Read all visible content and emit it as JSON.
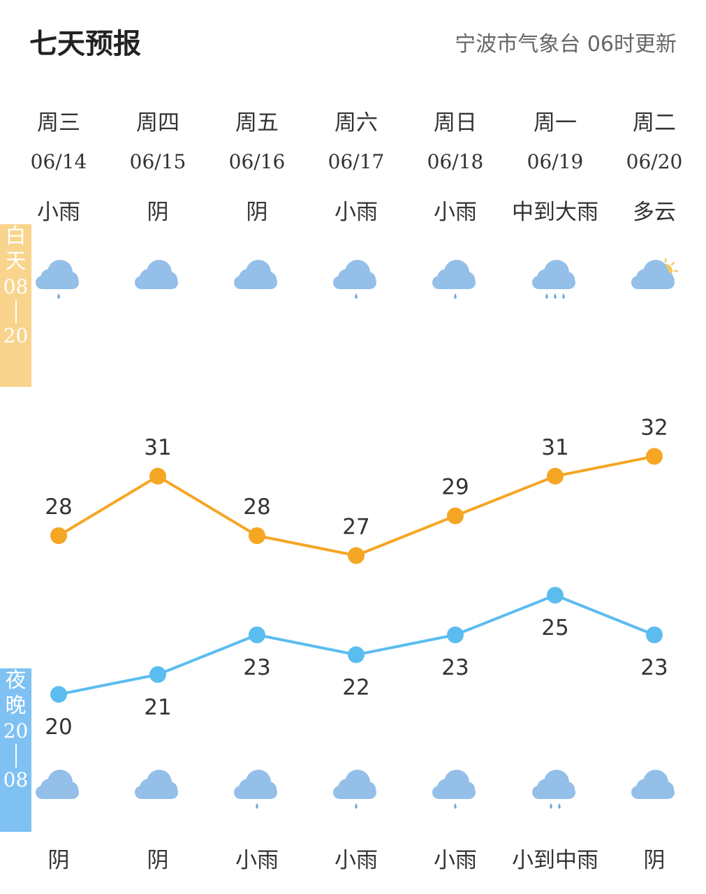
{
  "header": {
    "title": "七天预报",
    "source": "宁波市气象台 06时更新"
  },
  "bands": {
    "day_label": "白天",
    "day_from": "08",
    "day_to": "20",
    "night_label": "夜晚",
    "night_from": "20",
    "night_to": "08"
  },
  "days": [
    {
      "weekday": "周三",
      "date": "06/14",
      "day_weather": "小雨",
      "day_icon": "light-rain-icon",
      "night_weather": "阴",
      "night_icon": "overcast-icon"
    },
    {
      "weekday": "周四",
      "date": "06/15",
      "day_weather": "阴",
      "day_icon": "overcast-icon",
      "night_weather": "阴",
      "night_icon": "overcast-icon"
    },
    {
      "weekday": "周五",
      "date": "06/16",
      "day_weather": "阴",
      "day_icon": "overcast-icon",
      "night_weather": "小雨",
      "night_icon": "light-rain-icon"
    },
    {
      "weekday": "周六",
      "date": "06/17",
      "day_weather": "小雨",
      "day_icon": "light-rain-icon",
      "night_weather": "小雨",
      "night_icon": "light-rain-icon"
    },
    {
      "weekday": "周日",
      "date": "06/18",
      "day_weather": "小雨",
      "day_icon": "light-rain-icon",
      "night_weather": "小雨",
      "night_icon": "light-rain-icon"
    },
    {
      "weekday": "周一",
      "date": "06/19",
      "day_weather": "中到大雨",
      "day_icon": "heavy-rain-icon",
      "night_weather": "小到中雨",
      "night_icon": "moderate-rain-icon"
    },
    {
      "weekday": "周二",
      "date": "06/20",
      "day_weather": "多云",
      "day_icon": "partly-cloudy-icon",
      "night_weather": "阴",
      "night_icon": "overcast-icon"
    }
  ],
  "colors": {
    "high_line": "#f5a623",
    "low_line": "#5bbcf0",
    "cloud": "#93bfe9",
    "rain": "#6fa8dc",
    "sun": "#f6c85f"
  },
  "chart_data": {
    "type": "line",
    "categories": [
      "06/14",
      "06/15",
      "06/16",
      "06/17",
      "06/18",
      "06/19",
      "06/20"
    ],
    "series": [
      {
        "values": [
          28,
          31,
          28,
          27,
          29,
          31,
          32
        ]
      },
      {
        "values": [
          20,
          21,
          23,
          22,
          23,
          25,
          23
        ]
      }
    ]
  }
}
